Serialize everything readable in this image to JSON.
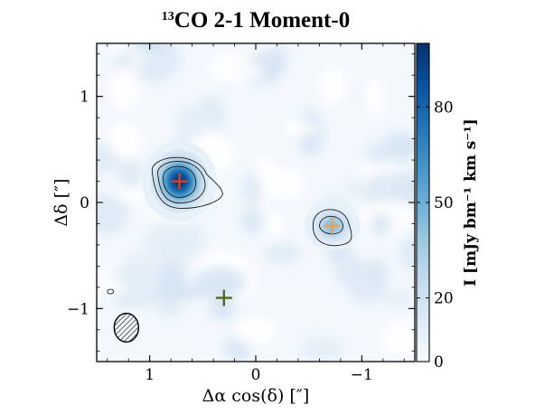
{
  "chart_data": {
    "type": "heatmap",
    "title": "13CO 2-1 Moment-0",
    "title_sup": "13",
    "title_rest": "CO 2-1 Moment-0",
    "xlabel": "Δα cos(δ) [″]",
    "ylabel": "Δδ [″]",
    "xlim": [
      1.5,
      -1.5
    ],
    "ylim": [
      -1.5,
      1.5
    ],
    "x_ticks": [
      1,
      0,
      -1
    ],
    "x_tick_labels": [
      "1",
      "0",
      "−1"
    ],
    "y_ticks": [
      1,
      0,
      -1
    ],
    "y_tick_labels": [
      "1",
      "0",
      "−1"
    ],
    "colormap": "Blues",
    "colorbar": {
      "label": "I [mJy bm⁻¹ km s⁻¹]",
      "range": [
        0,
        100
      ],
      "ticks": [
        0,
        20,
        50,
        80
      ],
      "tick_labels": [
        "0",
        "20",
        "50",
        "80"
      ]
    },
    "emission_peaks": [
      {
        "x": 0.72,
        "y": 0.2,
        "peak": 95,
        "sigma_x": 0.12,
        "sigma_y": 0.13
      },
      {
        "x": -0.72,
        "y": -0.22,
        "peak": 40,
        "sigma_x": 0.09,
        "sigma_y": 0.08
      }
    ],
    "markers": [
      {
        "x": 0.72,
        "y": 0.2,
        "color": "#d9412b",
        "shape": "plus"
      },
      {
        "x": -0.72,
        "y": -0.22,
        "color": "#f0a050",
        "shape": "plus"
      },
      {
        "x": 0.3,
        "y": -0.9,
        "color": "#4f6b1e",
        "shape": "plus"
      }
    ],
    "beam": {
      "x": 1.22,
      "y": -1.18,
      "major_arcsec": 0.27,
      "minor_arcsec": 0.23,
      "hatched": true
    },
    "grid": false,
    "legend": "none"
  }
}
